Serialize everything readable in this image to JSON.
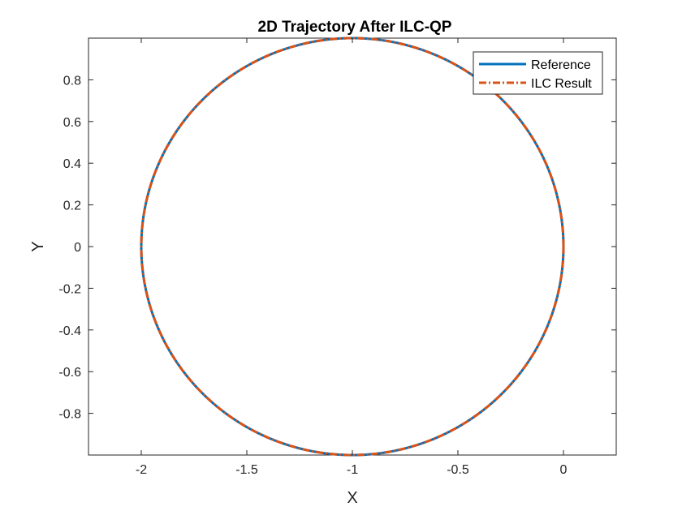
{
  "chart_data": {
    "type": "line",
    "title": "2D Trajectory After ILC-QP",
    "xlabel": "X",
    "ylabel": "Y",
    "xlim": [
      -2.25,
      0.25
    ],
    "ylim": [
      -1,
      1
    ],
    "xticks": [
      -2,
      -1.5,
      -1,
      -0.5,
      0
    ],
    "xtick_labels": [
      "-2",
      "-1.5",
      "-1",
      "-0.5",
      "0"
    ],
    "yticks": [
      -0.8,
      -0.6,
      -0.4,
      -0.2,
      0,
      0.2,
      0.4,
      0.6,
      0.8
    ],
    "ytick_labels": [
      "-0.8",
      "-0.6",
      "-0.4",
      "-0.2",
      "0",
      "0.2",
      "0.4",
      "0.6",
      "0.8"
    ],
    "grid": false,
    "legend_position": "top-right",
    "series": [
      {
        "name": "Reference",
        "color": "#0072BD",
        "line_style": "solid",
        "x": [
          0,
          -0.0341,
          -0.134,
          -0.2929,
          -0.5,
          -0.7412,
          -1,
          -1.2588,
          -1.5,
          -1.7071,
          -1.866,
          -1.9659,
          -2,
          -1.9659,
          -1.866,
          -1.7071,
          -1.5,
          -1.2588,
          -1,
          -0.7412,
          -0.5,
          -0.2929,
          -0.134,
          -0.0341,
          0
        ],
        "y": [
          0,
          0.2588,
          0.5,
          0.7071,
          0.866,
          0.9659,
          1,
          0.9659,
          0.866,
          0.7071,
          0.5,
          0.2588,
          0,
          -0.2588,
          -0.5,
          -0.7071,
          -0.866,
          -0.9659,
          -1,
          -0.9659,
          -0.866,
          -0.7071,
          -0.5,
          -0.2588,
          0
        ]
      },
      {
        "name": "ILC Result",
        "color": "#D95319",
        "line_style": "dashdot",
        "x": [
          0,
          -0.0341,
          -0.134,
          -0.2929,
          -0.5,
          -0.7412,
          -1,
          -1.2588,
          -1.5,
          -1.7071,
          -1.866,
          -1.9659,
          -2,
          -1.9659,
          -1.866,
          -1.7071,
          -1.5,
          -1.2588,
          -1,
          -0.7412,
          -0.5,
          -0.2929,
          -0.134,
          -0.0341,
          0
        ],
        "y": [
          0,
          0.2588,
          0.5,
          0.7071,
          0.866,
          0.9659,
          1,
          0.9659,
          0.866,
          0.7071,
          0.5,
          0.2588,
          0,
          -0.2588,
          -0.5,
          -0.7071,
          -0.866,
          -0.9659,
          -1,
          -0.9659,
          -0.866,
          -0.7071,
          -0.5,
          -0.2588,
          0
        ]
      }
    ]
  }
}
